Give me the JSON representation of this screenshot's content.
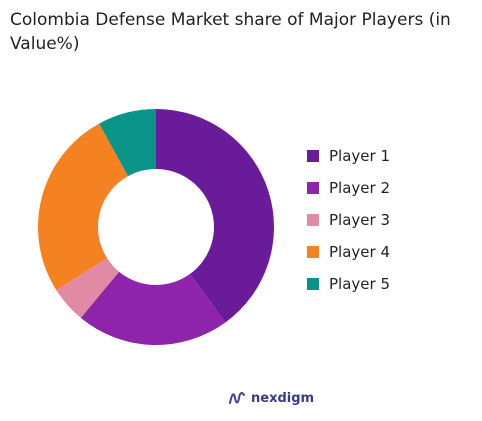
{
  "chart_data": {
    "type": "pie",
    "donut": true,
    "title": "Colombia Defense Market share of Major Players (in Value%)",
    "categories": [
      "Player 1",
      "Player 2",
      "Player 3",
      "Player 4",
      "Player 5"
    ],
    "values": [
      40,
      21,
      5,
      26,
      8
    ],
    "colors": [
      "#6a1b9a",
      "#8e24aa",
      "#e08aa4",
      "#f58221",
      "#0a9488"
    ],
    "legend_position": "right"
  },
  "brand": {
    "name": "nexdigm",
    "icon": "nexdigm-logo-icon"
  }
}
